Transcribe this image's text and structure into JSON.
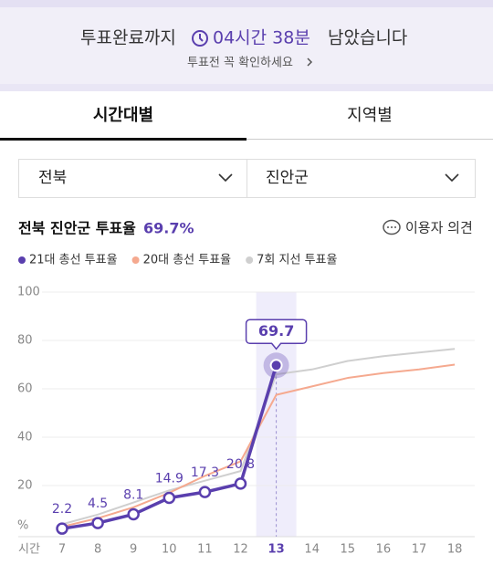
{
  "banner": {
    "label": "투표완료까지",
    "countdown": "04시간 38분",
    "suffix": "남았습니다",
    "link": "투표전 꼭 확인하세요"
  },
  "tabs": [
    "시간대별",
    "지역별"
  ],
  "selects": [
    "전북",
    "진안군"
  ],
  "heading": {
    "title": "전북 진안군 투표율",
    "rate": "69.7%"
  },
  "feedback": "이용자 의견",
  "chart_data": {
    "type": "line",
    "x_label": "시간",
    "y_unit": "%",
    "categories": [
      "7",
      "8",
      "9",
      "10",
      "11",
      "12",
      "13",
      "14",
      "15",
      "16",
      "17",
      "18"
    ],
    "ylim": [
      0,
      100
    ],
    "yticks": [
      20,
      40,
      60,
      80,
      100
    ],
    "grid": true,
    "series": [
      {
        "name": "7회 지선 투표율",
        "color": "#cfcfcf",
        "values": [
          4,
          8,
          13,
          18,
          22,
          26,
          66,
          68,
          71.5,
          73.5,
          75,
          76.5
        ]
      },
      {
        "name": "20대 총선 투표율",
        "color": "#f5a98f",
        "values": [
          3,
          6.5,
          11,
          17,
          24,
          30,
          57.5,
          61,
          64.5,
          66.5,
          68,
          70
        ]
      },
      {
        "name": "21대 총선 투표율",
        "color": "#5a3fae",
        "data_labels": true,
        "values": [
          2.2,
          4.5,
          8.1,
          14.9,
          17.3,
          20.8,
          69.7,
          null,
          null,
          null,
          null,
          null
        ]
      }
    ]
  }
}
